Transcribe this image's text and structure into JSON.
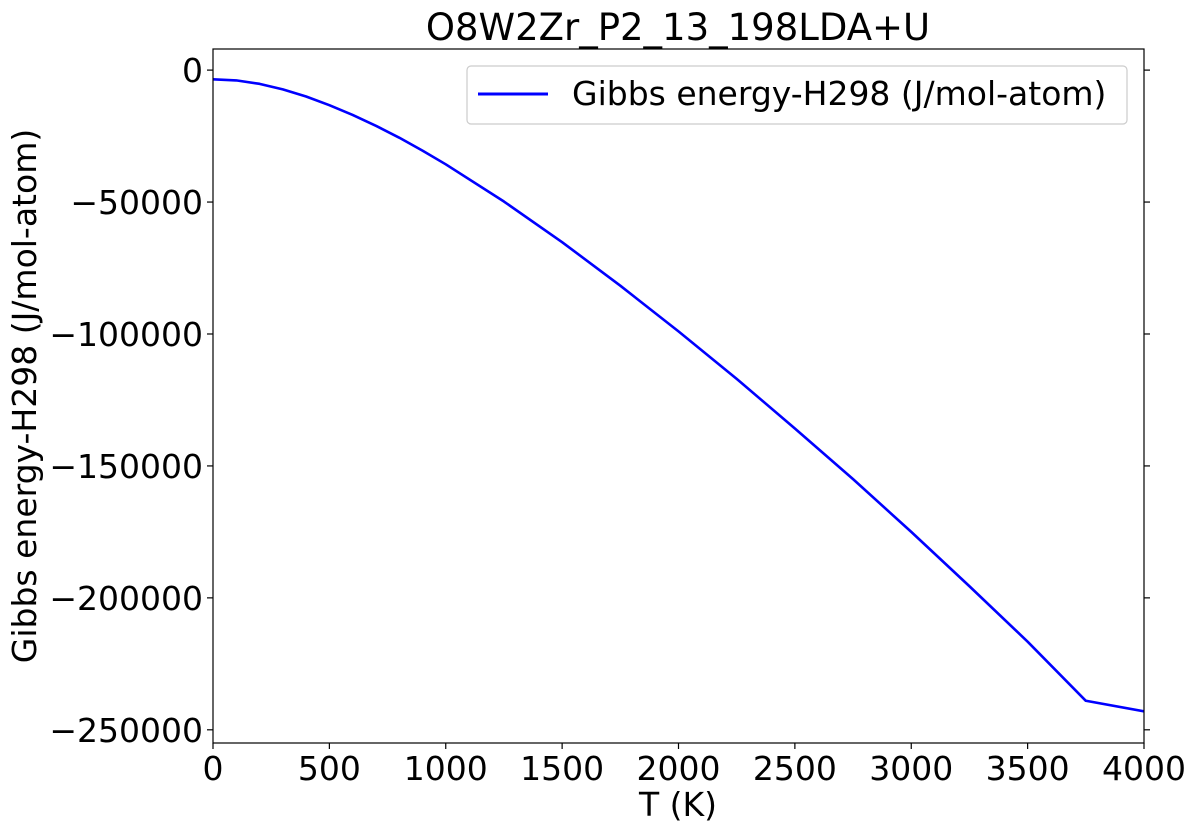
{
  "chart_data": {
    "type": "line",
    "title": "O8W2Zr_P2_13_198LDA+U",
    "xlabel": "T (K)",
    "ylabel": "Gibbs energy-H298 (J/mol-atom)",
    "xlim": [
      0,
      4000
    ],
    "ylim": [
      -255000,
      8000
    ],
    "xticks": [
      0,
      500,
      1000,
      1500,
      2000,
      2500,
      3000,
      3500,
      4000
    ],
    "xtick_labels": [
      "0",
      "500",
      "1000",
      "1500",
      "2000",
      "2500",
      "3000",
      "3500",
      "4000"
    ],
    "yticks": [
      0,
      -50000,
      -100000,
      -150000,
      -200000,
      -250000
    ],
    "ytick_labels": [
      "0",
      "−50000",
      "−100000",
      "−150000",
      "−200000",
      "−250000"
    ],
    "grid": false,
    "legend_position": "upper right",
    "series": [
      {
        "name": "Gibbs energy-H298 (J/mol-atom)",
        "color": "#0000ff",
        "x": [
          0,
          100,
          200,
          300,
          400,
          500,
          600,
          700,
          800,
          900,
          1000,
          1250,
          1500,
          1750,
          2000,
          2250,
          2500,
          2750,
          3000,
          3250,
          3500,
          3750,
          4000
        ],
        "y": [
          -3500,
          -3900,
          -5200,
          -7300,
          -10000,
          -13300,
          -17000,
          -21100,
          -25600,
          -30500,
          -35700,
          -49800,
          -65200,
          -81700,
          -99000,
          -117000,
          -135800,
          -155000,
          -175000,
          -195600,
          -216600,
          -239000,
          -243000
        ]
      }
    ]
  }
}
